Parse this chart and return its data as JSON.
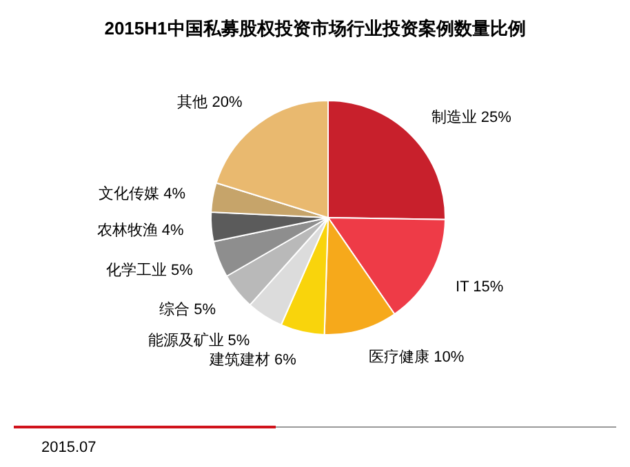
{
  "chart_data": {
    "type": "pie",
    "title": "2015H1中国私募股权投资市场行业投资案例数量比例",
    "categories": [
      "制造业",
      "IT",
      "医疗健康",
      "建筑建材",
      "能源及矿业",
      "综合",
      "化学工业",
      "农林牧渔",
      "文化传媒",
      "其他"
    ],
    "values": [
      25,
      15,
      10,
      6,
      5,
      5,
      5,
      4,
      4,
      20
    ],
    "value_labels": [
      "25%",
      "15%",
      "10%",
      "6%",
      "5%",
      "5%",
      "5%",
      "4%",
      "4%",
      "20%"
    ],
    "colors": [
      "#c8202c",
      "#ee3b47",
      "#f6a91b",
      "#f9d40c",
      "#dcdcdc",
      "#b9b9b9",
      "#8e8e8e",
      "#5b5b5b",
      "#c6a46a",
      "#e9b96f"
    ],
    "annotations": [
      "2015.07"
    ]
  }
}
